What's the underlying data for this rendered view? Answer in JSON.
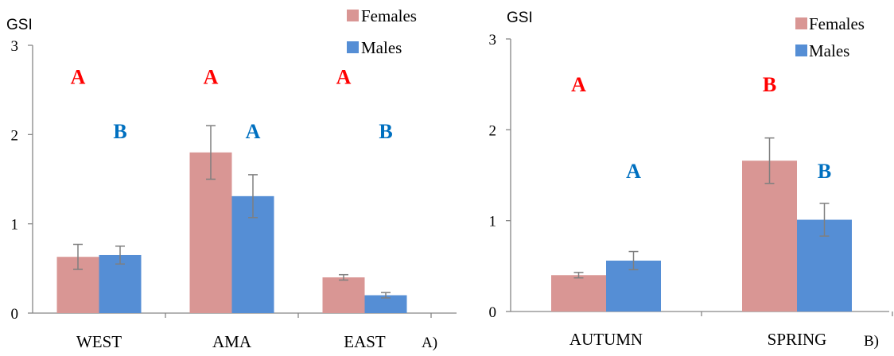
{
  "chart_data": [
    {
      "type": "bar",
      "ylabel": "GSI",
      "ylim": [
        0,
        3
      ],
      "yticks": [
        0,
        1,
        2,
        3
      ],
      "categories": [
        "WEST",
        "AMA",
        "EAST"
      ],
      "panel_label": "A)",
      "legend_position": "top-right",
      "grid": false,
      "series": [
        {
          "name": "Females",
          "color": "#d99694",
          "values": [
            0.63,
            1.8,
            0.4
          ],
          "errors": [
            0.14,
            0.3,
            0.03
          ],
          "letters": [
            "A",
            "A",
            "A"
          ],
          "letter_color": "#ff0000",
          "letter_y": [
            2.65,
            2.65,
            2.65
          ]
        },
        {
          "name": "Males",
          "color": "#558ed5",
          "values": [
            0.65,
            1.31,
            0.2
          ],
          "errors": [
            0.1,
            0.24,
            0.03
          ],
          "letters": [
            "B",
            "A",
            "B"
          ],
          "letter_color": "#0070c0",
          "letter_y": [
            2.04,
            2.04,
            2.04
          ]
        }
      ]
    },
    {
      "type": "bar",
      "ylabel": "GSI",
      "ylim": [
        0,
        3
      ],
      "yticks": [
        0,
        1,
        2,
        3
      ],
      "categories": [
        "AUTUMN",
        "SPRING"
      ],
      "panel_label": "B)",
      "legend_position": "top-right",
      "grid": false,
      "series": [
        {
          "name": "Females",
          "color": "#d99694",
          "values": [
            0.4,
            1.66
          ],
          "errors": [
            0.03,
            0.25
          ],
          "letters": [
            "A",
            "B"
          ],
          "letter_color": "#ff0000",
          "letter_y": [
            2.5,
            2.5
          ]
        },
        {
          "name": "Males",
          "color": "#558ed5",
          "values": [
            0.56,
            1.01
          ],
          "errors": [
            0.1,
            0.18
          ],
          "letters": [
            "A",
            "B"
          ],
          "letter_color": "#0070c0",
          "letter_y": [
            1.55,
            1.55
          ]
        }
      ]
    }
  ]
}
